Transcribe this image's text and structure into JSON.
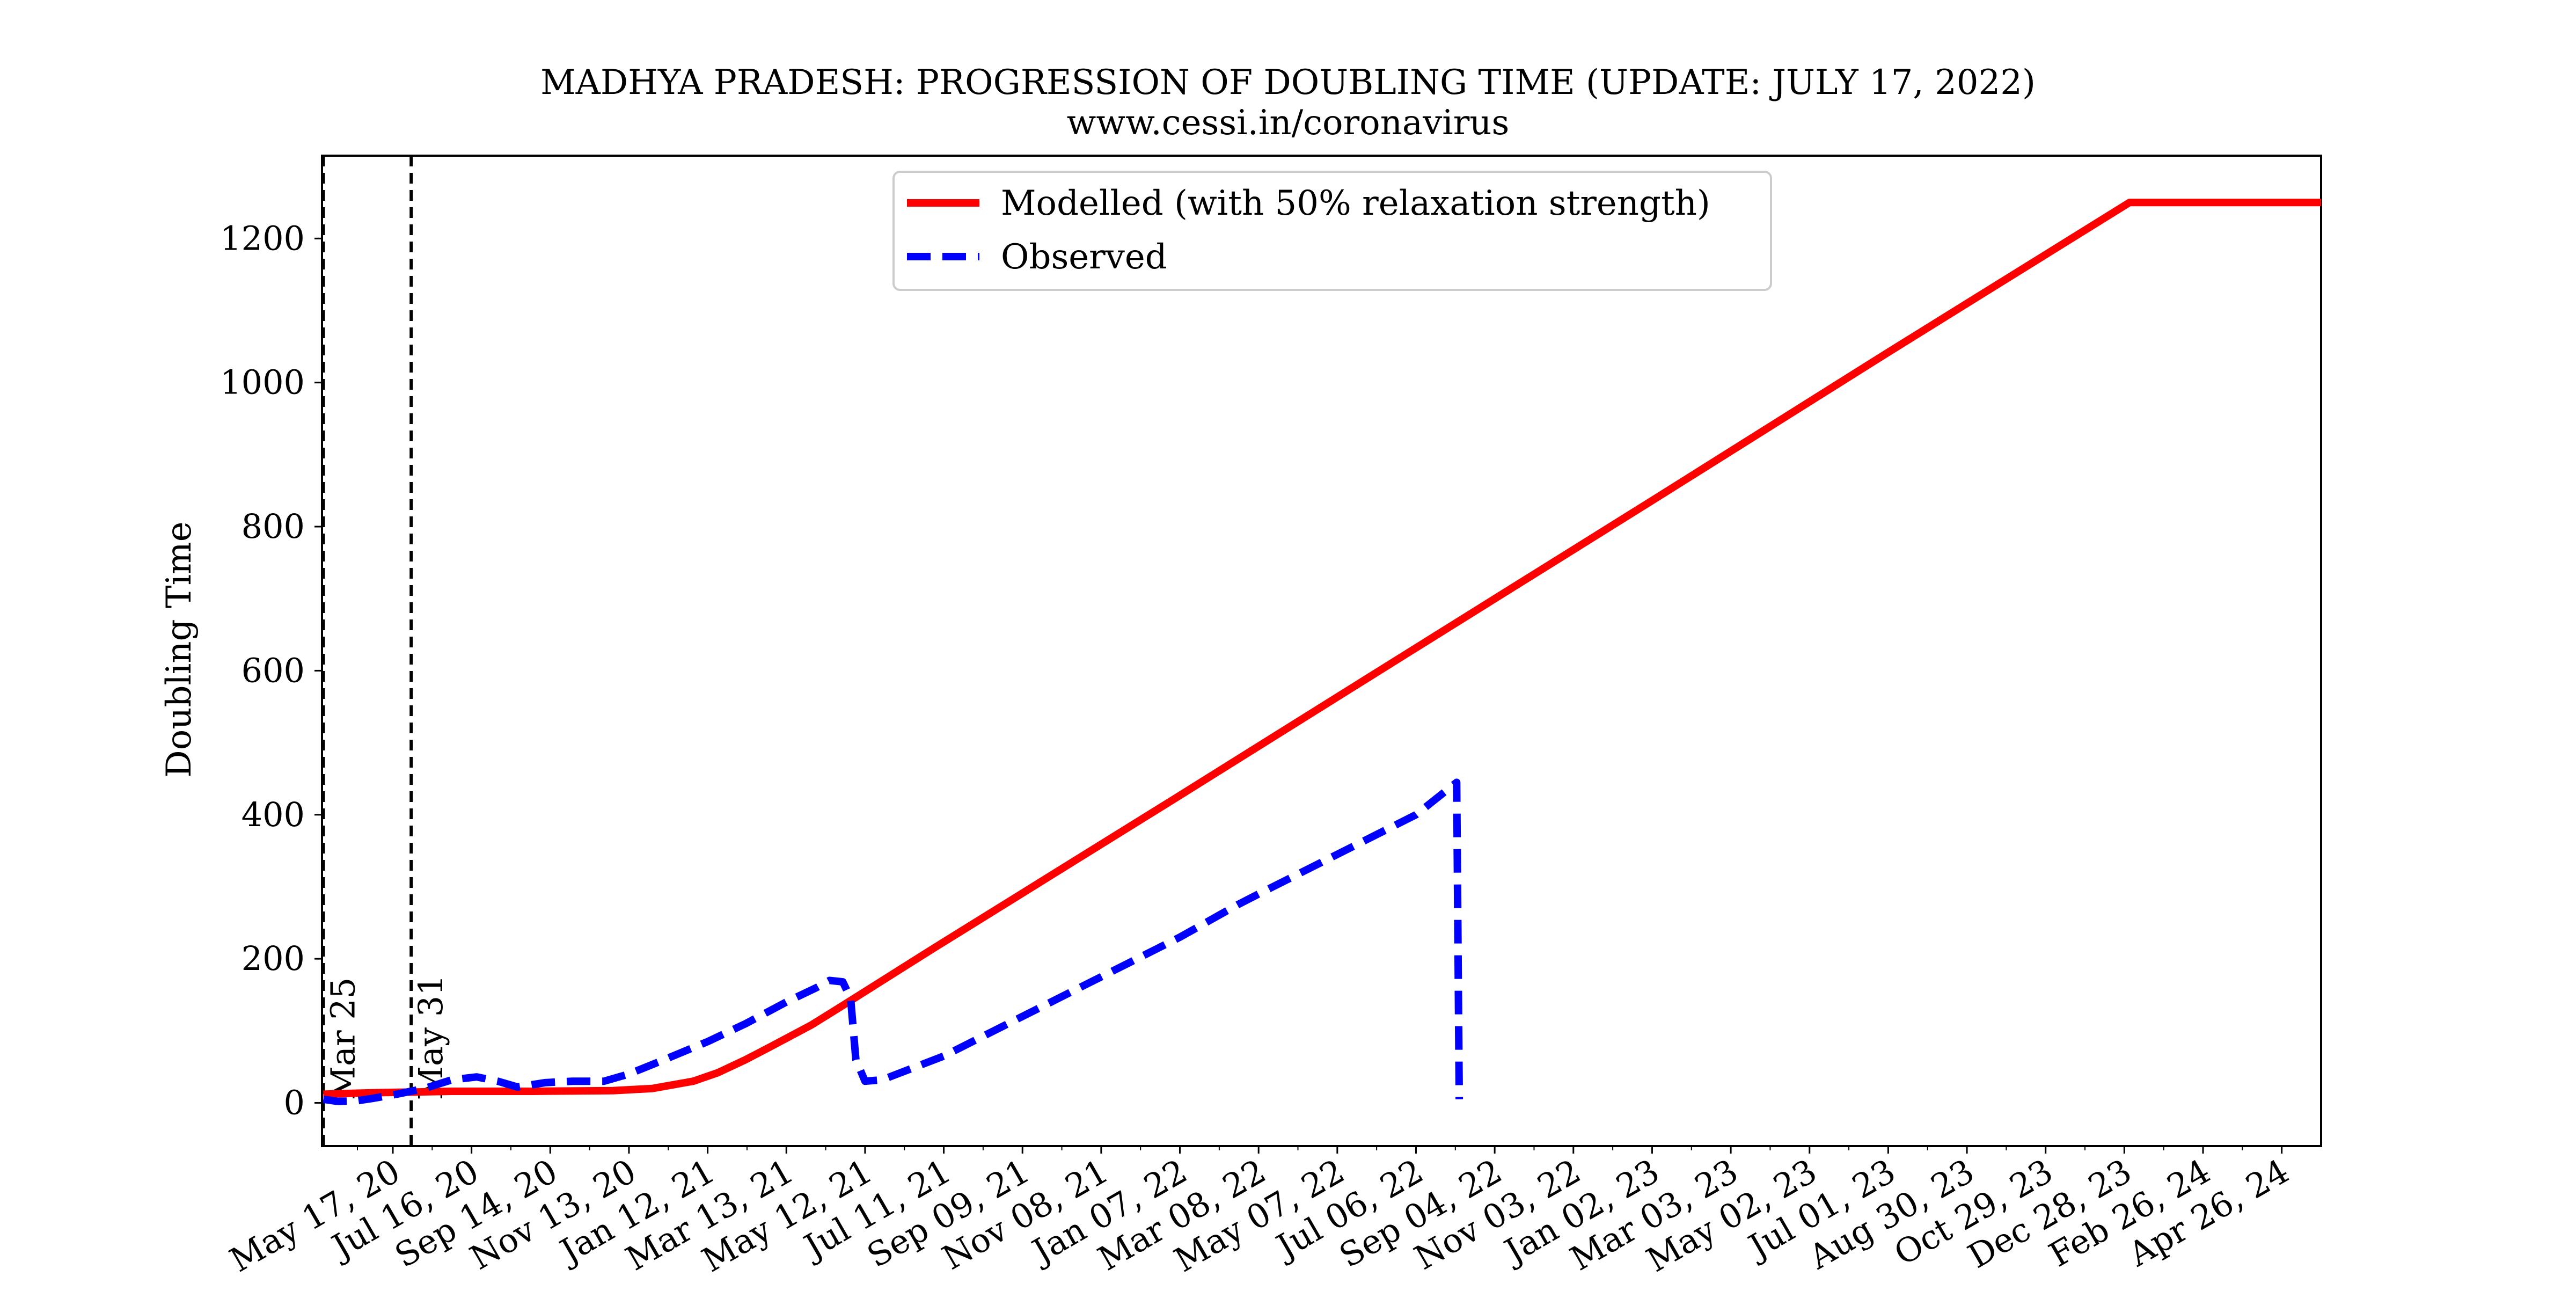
{
  "chart_data": {
    "type": "line",
    "title": "MADHYA PRADESH: PROGRESSION OF DOUBLING TIME (UPDATE: JULY 17, 2022)",
    "subtitle": "www.cessi.in/coronavirus",
    "xlabel": "",
    "ylabel": "Doubling Time",
    "x_axis_type": "date",
    "xlim": [
      "2020-03-24",
      "2024-05-26"
    ],
    "ylim": [
      -60,
      1315
    ],
    "yticks": [
      0,
      200,
      400,
      600,
      800,
      1000,
      1200
    ],
    "xticks": [
      {
        "date": "2020-05-17",
        "label": "May 17, 20"
      },
      {
        "date": "2020-07-16",
        "label": "Jul 16, 20"
      },
      {
        "date": "2020-09-14",
        "label": "Sep 14, 20"
      },
      {
        "date": "2020-11-13",
        "label": "Nov 13, 20"
      },
      {
        "date": "2021-01-12",
        "label": "Jan 12, 21"
      },
      {
        "date": "2021-03-13",
        "label": "Mar 13, 21"
      },
      {
        "date": "2021-05-12",
        "label": "May 12, 21"
      },
      {
        "date": "2021-07-11",
        "label": "Jul 11, 21"
      },
      {
        "date": "2021-09-09",
        "label": "Sep 09, 21"
      },
      {
        "date": "2021-11-08",
        "label": "Nov 08, 21"
      },
      {
        "date": "2022-01-07",
        "label": "Jan 07, 22"
      },
      {
        "date": "2022-03-08",
        "label": "Mar 08, 22"
      },
      {
        "date": "2022-05-07",
        "label": "May 07, 22"
      },
      {
        "date": "2022-07-06",
        "label": "Jul 06, 22"
      },
      {
        "date": "2022-09-04",
        "label": "Sep 04, 22"
      },
      {
        "date": "2022-11-03",
        "label": "Nov 03, 22"
      },
      {
        "date": "2023-01-02",
        "label": "Jan 02, 23"
      },
      {
        "date": "2023-03-03",
        "label": "Mar 03, 23"
      },
      {
        "date": "2023-05-02",
        "label": "May 02, 23"
      },
      {
        "date": "2023-07-01",
        "label": "Jul 01, 23"
      },
      {
        "date": "2023-08-30",
        "label": "Aug 30, 23"
      },
      {
        "date": "2023-10-29",
        "label": "Oct 29, 23"
      },
      {
        "date": "2023-12-28",
        "label": "Dec 28, 23"
      },
      {
        "date": "2024-02-26",
        "label": "Feb 26, 24"
      },
      {
        "date": "2024-04-26",
        "label": "Apr 26, 24"
      }
    ],
    "minor_ticks_per_major": 1,
    "grid": false,
    "legend_position": "top-center",
    "vlines": [
      {
        "date": "2020-03-25",
        "label": "Mar 25",
        "style": "dashed",
        "color": "#000000"
      },
      {
        "date": "2020-05-31",
        "label": "May 31",
        "style": "dashed",
        "color": "#000000"
      }
    ],
    "series": [
      {
        "name": "Modelled (with 50% relaxation strength)",
        "color": "#ff0000",
        "style": "solid",
        "points": [
          [
            "2020-03-25",
            12
          ],
          [
            "2020-05-01",
            14
          ],
          [
            "2020-07-01",
            16
          ],
          [
            "2020-09-01",
            16
          ],
          [
            "2020-11-01",
            17
          ],
          [
            "2020-12-01",
            20
          ],
          [
            "2021-01-01",
            30
          ],
          [
            "2021-01-20",
            42
          ],
          [
            "2021-02-10",
            60
          ],
          [
            "2021-03-01",
            78
          ],
          [
            "2021-04-01",
            108
          ],
          [
            "2021-05-01",
            142
          ],
          [
            "2021-07-01",
            212
          ],
          [
            "2022-01-01",
            420
          ],
          [
            "2022-07-01",
            626
          ],
          [
            "2023-01-01",
            835
          ],
          [
            "2023-07-01",
            1042
          ],
          [
            "2024-01-01",
            1250
          ],
          [
            "2024-05-26",
            1250
          ]
        ]
      },
      {
        "name": "Observed",
        "color": "#0000ff",
        "style": "dashed",
        "points": [
          [
            "2020-03-25",
            5
          ],
          [
            "2020-04-05",
            2
          ],
          [
            "2020-04-20",
            3
          ],
          [
            "2020-05-01",
            6
          ],
          [
            "2020-05-20",
            12
          ],
          [
            "2020-06-10",
            20
          ],
          [
            "2020-07-01",
            32
          ],
          [
            "2020-07-20",
            36
          ],
          [
            "2020-08-05",
            30
          ],
          [
            "2020-08-20",
            22
          ],
          [
            "2020-09-10",
            28
          ],
          [
            "2020-10-01",
            30
          ],
          [
            "2020-10-25",
            30
          ],
          [
            "2020-11-13",
            40
          ],
          [
            "2020-12-10",
            60
          ],
          [
            "2021-01-12",
            85
          ],
          [
            "2021-02-10",
            110
          ],
          [
            "2021-03-13",
            140
          ],
          [
            "2021-04-05",
            160
          ],
          [
            "2021-04-15",
            170
          ],
          [
            "2021-04-25",
            168
          ],
          [
            "2021-05-01",
            145
          ],
          [
            "2021-05-05",
            60
          ],
          [
            "2021-05-12",
            30
          ],
          [
            "2021-05-25",
            32
          ],
          [
            "2021-07-11",
            65
          ],
          [
            "2021-09-09",
            120
          ],
          [
            "2021-11-08",
            175
          ],
          [
            "2022-01-07",
            230
          ],
          [
            "2022-02-20",
            275
          ],
          [
            "2022-03-08",
            290
          ],
          [
            "2022-05-07",
            345
          ],
          [
            "2022-07-06",
            400
          ],
          [
            "2022-08-06",
            445
          ],
          [
            "2022-08-08",
            5
          ]
        ]
      }
    ]
  }
}
